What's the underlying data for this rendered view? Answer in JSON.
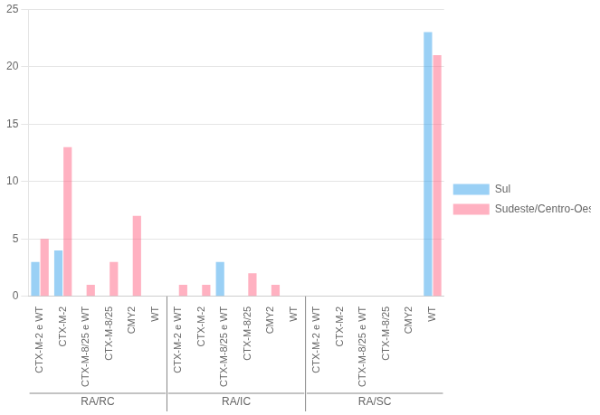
{
  "chart_data": {
    "type": "bar",
    "groups": [
      {
        "label": "RA/RC",
        "categories": [
          "CTX-M-2 e WT",
          "CTX-M-2",
          "CTX-M-8/25 e WT",
          "CTX-M-8/25",
          "CMY2",
          "WT"
        ]
      },
      {
        "label": "RA/IC",
        "categories": [
          "CTX-M-2 e WT",
          "CTX-M-2",
          "CTX-M-8/25 e WT",
          "CTX-M-8/25",
          "CMY2",
          "WT"
        ]
      },
      {
        "label": "RA/SC",
        "categories": [
          "CTX-M-2 e WT",
          "CTX-M-2",
          "CTX-M-8/25 e WT",
          "CTX-M-8/25",
          "CMY2",
          "WT"
        ]
      }
    ],
    "series": [
      {
        "name": "Sul",
        "values": [
          3,
          4,
          0,
          0,
          0,
          0,
          0,
          0,
          3,
          0,
          0,
          0,
          0,
          0,
          0,
          0,
          0,
          23
        ]
      },
      {
        "name": "Sudeste/Centro-Oeste",
        "values": [
          5,
          13,
          1,
          3,
          7,
          0,
          1,
          1,
          0,
          2,
          1,
          0,
          0,
          0,
          0,
          0,
          0,
          21
        ]
      }
    ],
    "ylim": [
      0,
      25
    ],
    "yticks": [
      0,
      5,
      10,
      15,
      20,
      25
    ],
    "grid": true,
    "legend": "right"
  }
}
